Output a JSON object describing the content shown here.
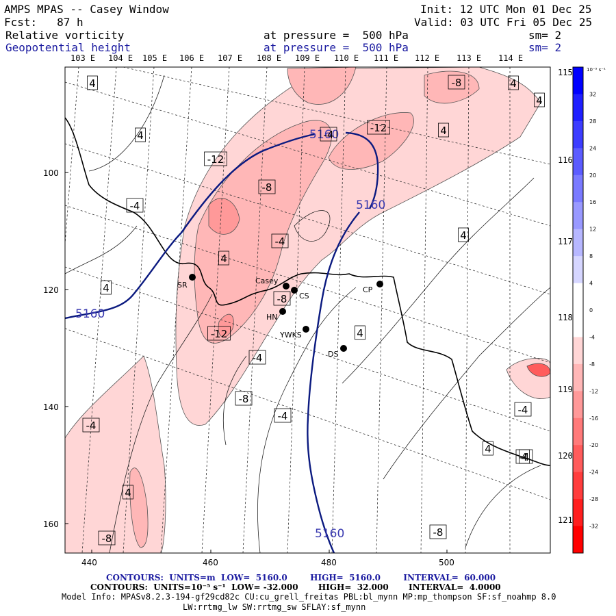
{
  "header": {
    "title": "AMPS MPAS -- Casey Window",
    "init": "Init: 12 UTC Mon 01 Dec 25",
    "fcst": "Fcst:   87 h",
    "valid": "Valid: 03 UTC Fri 05 Dec 25",
    "field1": "Relative vorticity",
    "field1_level": "at pressure =  500 hPa",
    "field1_sm": "sm= 2",
    "field2": "Geopotential height",
    "field2_level": "at pressure =  500 hPa",
    "field2_sm": "sm= 2"
  },
  "colors": {
    "height_line": "#0b1a80",
    "blue_text": "#1a1aa0"
  },
  "chart_data": {
    "type": "heatmap",
    "x_ticks": [
      "440",
      "460",
      "480",
      "500"
    ],
    "y_ticks": [
      "100",
      "120",
      "140",
      "160"
    ],
    "lon_labels": [
      "103 E",
      "104 E",
      "105 E",
      "106 E",
      "107 E",
      "108 E",
      "109 E",
      "110 E",
      "111 E",
      "112 E",
      "113 E",
      "114 E"
    ],
    "lon_labels_right": [
      "115 E",
      "116 E",
      "117 E",
      "118 E",
      "119 E",
      "120 E",
      "121 E"
    ],
    "colorbar": {
      "unit": "10⁻⁵ s⁻¹",
      "ticks": [
        "32",
        "28",
        "24",
        "20",
        "16",
        "12",
        "8",
        "4",
        "0",
        "-4",
        "-8",
        "-12",
        "-16",
        "-20",
        "-24",
        "-28",
        "-32"
      ],
      "colors": [
        "#0000ff",
        "#1f1fff",
        "#3d3dff",
        "#5c5cff",
        "#7a7aff",
        "#9999ff",
        "#b7b7ff",
        "#d6d6ff",
        "#ffffff",
        "#ffffff",
        "#ffd6d6",
        "#ffb7b7",
        "#ff9999",
        "#ff7a7a",
        "#ff5c5c",
        "#ff3d3d",
        "#ff1f1f",
        "#ff0000"
      ]
    },
    "height_label": "5160",
    "vort_labels": [
      "4",
      "4",
      "-4",
      "4",
      "4",
      "4",
      "-8",
      "4",
      "4",
      "-12",
      "-8",
      "-4",
      "-12",
      "5160",
      "-4",
      "4",
      "-8",
      "-12",
      "-4",
      "-8",
      "-4",
      "-4",
      "4",
      "-4",
      "4",
      "-4",
      "4",
      "-8",
      "-8",
      "4"
    ],
    "stations": [
      "SR",
      "Casey",
      "CS",
      "CP",
      "HN",
      "YWKS",
      "DS"
    ]
  },
  "footer": {
    "contours1": "CONTOURS:  UNITS=m  LOW=  5160.0        HIGH=  5160.0        INTERVAL=  60.000",
    "contours2": "CONTOURS:  UNITS=10⁻⁵ s⁻¹  LOW= -32.000       HIGH=  32.000       INTERVAL=  4.0000",
    "model_info": "Model Info: MPASv8.2.3-194-gf29cd82c CU:cu_grell_freitas PBL:bl_mynn MP:mp_thompson SF:sf_noahmp 8.0",
    "model_info2": "LW:rrtmg_lw SW:rrtmg_sw SFLAY:sf_mynn"
  }
}
